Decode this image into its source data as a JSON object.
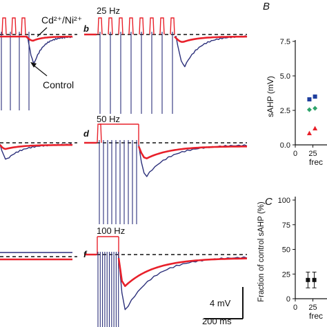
{
  "figure": {
    "annotations": {
      "cd_ni": "Cd²⁺/Ni²⁺",
      "control": "Control",
      "scale_mv": "4 mV",
      "scale_ms": "200 ms"
    },
    "panels": [
      {
        "letter": "b",
        "freq": "25 Hz"
      },
      {
        "letter": "d",
        "freq": "50 Hz"
      },
      {
        "letter": "f",
        "freq": "100 Hz"
      }
    ],
    "legend": {
      "control_color": "#2b2f7a",
      "cdni_color": "#e8202a"
    }
  },
  "chart_data": [
    {
      "type": "scatter",
      "panel": "B",
      "title": "",
      "xlabel": "frec",
      "ylabel": "sAHP (mV)",
      "ylim": [
        0,
        7.5
      ],
      "yticks": [
        "0.0",
        "2.5",
        "5.0",
        "7.5"
      ],
      "xticks": [
        "0",
        "25"
      ],
      "series": [
        {
          "color": "#1f3f9e",
          "marker": "square",
          "x": [
            20,
            28
          ],
          "y": [
            3.3,
            3.5
          ]
        },
        {
          "color": "#2fa36b",
          "marker": "diamond",
          "x": [
            20,
            28
          ],
          "y": [
            2.55,
            2.65
          ]
        },
        {
          "color": "#e8202a",
          "marker": "triangle",
          "x": [
            20,
            28
          ],
          "y": [
            0.85,
            1.2
          ]
        }
      ]
    },
    {
      "type": "scatter",
      "panel": "C",
      "title": "",
      "xlabel": "frec",
      "ylabel": "Fraction of control sAHP (%)",
      "ylim": [
        0,
        100
      ],
      "yticks": [
        "0",
        "25",
        "50",
        "75",
        "100"
      ],
      "xticks": [
        "0",
        "25"
      ],
      "series": [
        {
          "color": "#111111",
          "marker": "square",
          "x": [
            18,
            27
          ],
          "y": [
            19,
            19
          ],
          "err": [
            8,
            8
          ]
        }
      ]
    }
  ],
  "panel_letters": {
    "B": "B",
    "C": "C"
  }
}
